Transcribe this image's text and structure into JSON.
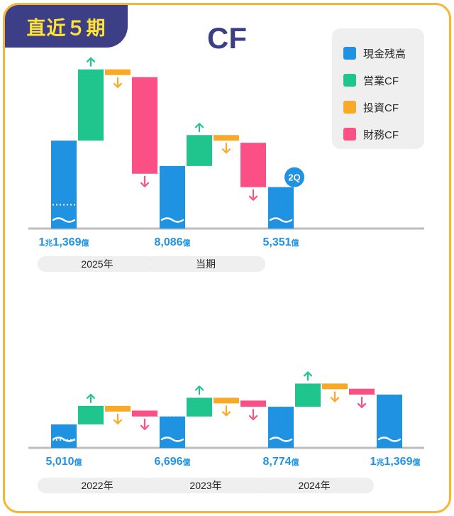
{
  "badge": "直近５期",
  "title": "CF",
  "legend": [
    {
      "label": "現金残高",
      "color": "#1f93e2"
    },
    {
      "label": "営業CF",
      "color": "#20c48d"
    },
    {
      "label": "投資CF",
      "color": "#f8a928"
    },
    {
      "label": "財務CF",
      "color": "#fb5085"
    }
  ],
  "colors": {
    "cash": "#1f93e2",
    "operating": "#20c48d",
    "investing": "#f8a928",
    "financing": "#fb5085",
    "axis": "#bdbdbd",
    "label": "#1f93e2"
  },
  "chart_data": [
    {
      "type": "waterfall",
      "title": "CF",
      "unit": "億円",
      "periods": [
        {
          "label": "2025年",
          "start_cash": 11369,
          "start_label_num": "1",
          "start_label_unit": "兆",
          "start_label_rest": "1,369",
          "start_label_suffix": "億",
          "operating": 9200,
          "investing": -1000,
          "financing": -12483
        },
        {
          "label": "当期",
          "start_cash": 8086,
          "start_label_num": "",
          "start_label_unit": "",
          "start_label_rest": "8,086",
          "start_label_suffix": "億",
          "operating": 4000,
          "investing": -1000,
          "financing": -5735
        }
      ],
      "end_cash": 5351,
      "end_label_rest": "5,351",
      "end_label_suffix": "億",
      "end_badge": "2Q"
    },
    {
      "type": "waterfall",
      "unit": "億円",
      "periods": [
        {
          "label": "2022年",
          "start_cash": 5010,
          "start_label_num": "",
          "start_label_unit": "",
          "start_label_rest": "5,010",
          "start_label_suffix": "億",
          "operating": 3950,
          "investing": -1000,
          "financing": -1264
        },
        {
          "label": "2023年",
          "start_cash": 6696,
          "start_label_num": "",
          "start_label_unit": "",
          "start_label_rest": "6,696",
          "start_label_suffix": "億",
          "operating": 4000,
          "investing": -600,
          "financing": -1322
        },
        {
          "label": "2024年",
          "start_cash": 8774,
          "start_label_num": "",
          "start_label_unit": "",
          "start_label_rest": "8,774",
          "start_label_suffix": "億",
          "operating": 4950,
          "investing": -1100,
          "financing": -1255
        }
      ],
      "end_cash": 11369,
      "end_label_num": "1",
      "end_label_unit": "兆",
      "end_label_rest": "1,369",
      "end_label_suffix": "億"
    }
  ]
}
